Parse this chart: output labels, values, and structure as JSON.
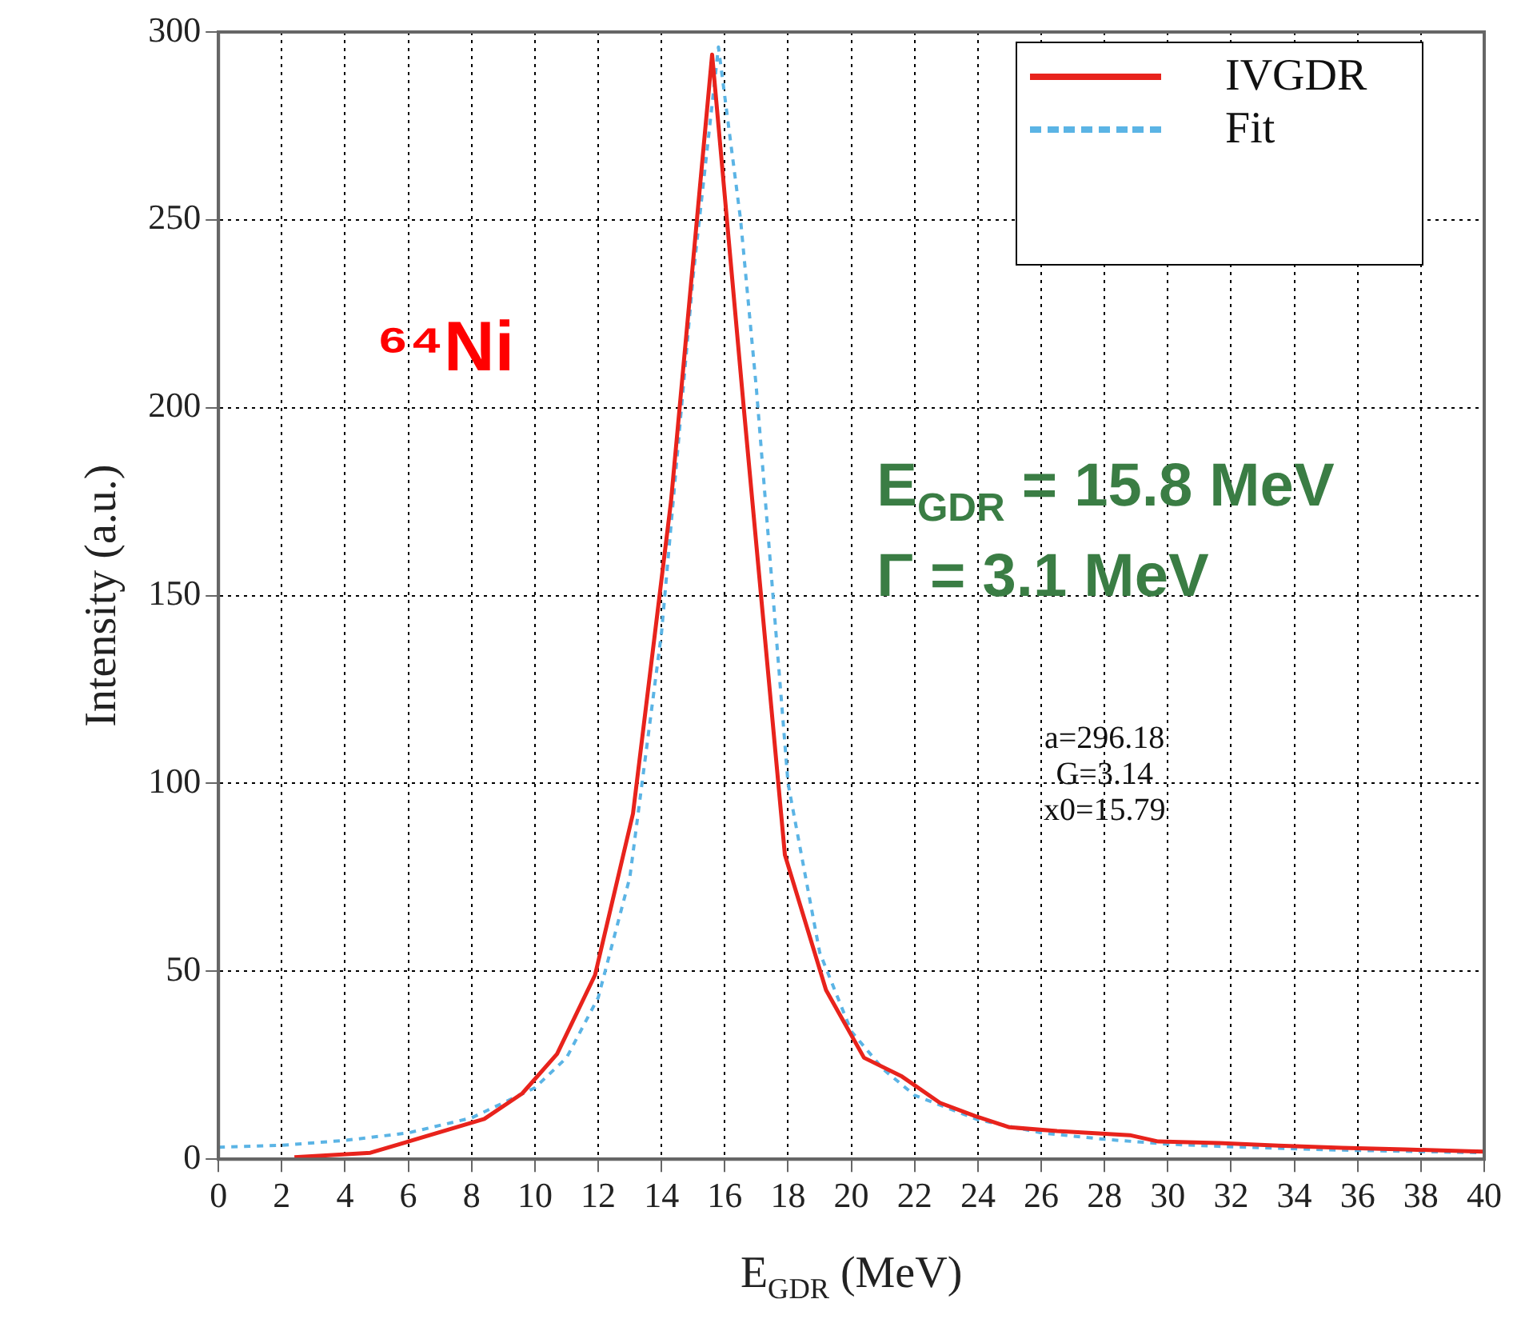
{
  "chart_data": {
    "type": "line",
    "xlabel": "E$_{GDR}$ (MeV)",
    "ylabel": "Intensity (a.u.)",
    "xlim": [
      0,
      40
    ],
    "xticks": [
      0,
      2,
      4,
      6,
      8,
      10,
      12,
      14,
      16,
      18,
      20,
      22,
      24,
      26,
      28,
      30,
      32,
      34,
      36,
      38,
      40
    ],
    "ylim": [
      0,
      300
    ],
    "yticks": [
      0,
      50,
      100,
      150,
      200,
      250,
      300
    ],
    "grid": true,
    "legend": "top right",
    "marker": "none",
    "series": [
      {
        "name": "IVGDR",
        "color": "#e8231c",
        "line_style": "solid",
        "x": [
          2.4,
          4.8,
          8.4,
          9.6,
          10.7,
          11.9,
          13.1,
          14.3,
          15.6,
          16.6,
          17.9,
          19.2,
          20.4,
          21.6,
          22.8,
          23.9,
          25.0,
          26.5,
          28.8,
          29.7,
          31.6,
          33.5,
          35.5,
          37.5,
          39.5,
          40
        ],
        "values": [
          0.5,
          1.7,
          10.7,
          17.5,
          28,
          49,
          92,
          175,
          294,
          200,
          81,
          45,
          27,
          22,
          15,
          11.5,
          8.5,
          7.5,
          6.4,
          4.7,
          4.3,
          3.6,
          3,
          2.6,
          2.1,
          2
        ]
      },
      {
        "name": "Fit",
        "color": "#5bb4e5",
        "line_style": "dotted",
        "x": [
          0,
          2,
          4,
          6,
          8,
          10,
          11,
          12,
          13,
          14,
          15,
          15.8,
          16.5,
          17,
          18,
          19,
          20,
          21,
          22,
          24,
          26,
          28,
          30,
          32,
          35,
          40
        ],
        "values": [
          3.2,
          3.7,
          5,
          7,
          11,
          19,
          27,
          43,
          75,
          140,
          235,
          296,
          250,
          205,
          100,
          55,
          34,
          24,
          17,
          10.5,
          7,
          5.3,
          4,
          3.3,
          2.5,
          1.7
        ]
      }
    ],
    "annotations": [
      "⁶⁴Ni",
      "E$_{GDR}$ = 15.8 MeV",
      "Γ = 3.1 MeV",
      "a=296.18",
      "G=3.14",
      "x0=15.79"
    ]
  }
}
